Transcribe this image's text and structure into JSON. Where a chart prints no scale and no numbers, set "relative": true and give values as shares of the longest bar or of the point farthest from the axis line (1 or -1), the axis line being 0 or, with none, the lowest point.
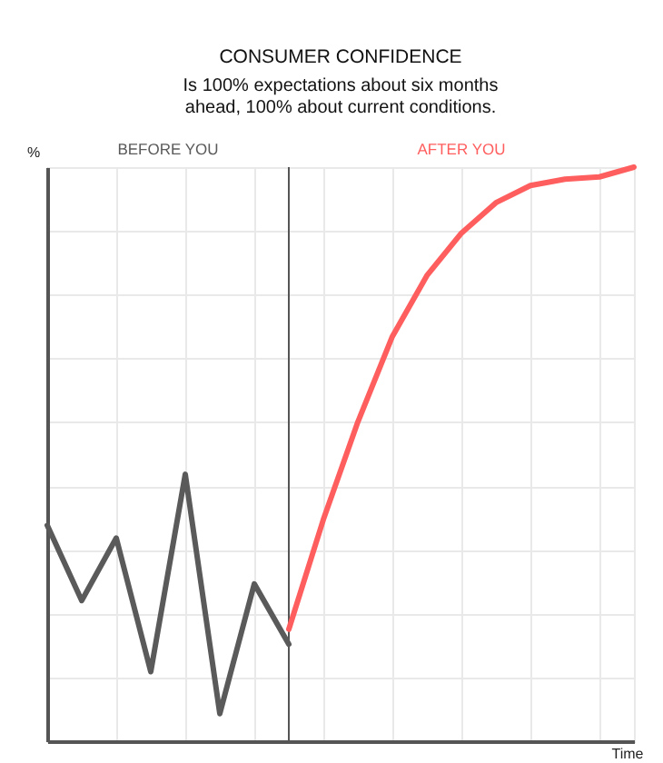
{
  "chart_data": {
    "type": "line",
    "title": "CONSUMER CONFIDENCE",
    "subtitle": "Is 100% expectations about six months\nahead, 100% about current conditions.",
    "xlabel": "Time",
    "ylabel": "%",
    "relative": true,
    "grid": true,
    "tick_labels": false,
    "line_style": "solid",
    "categories": [
      null,
      null,
      null,
      null,
      null,
      null,
      null,
      null,
      null,
      null,
      null,
      null,
      null,
      null,
      null,
      null,
      null,
      null
    ],
    "series": [
      {
        "name": "BEFORE YOU",
        "color": "#5a5a5a",
        "values": [
          0.376,
          0.245,
          0.354,
          0.121,
          0.465,
          0.048,
          0.274,
          0.169,
          null,
          null,
          null,
          null,
          null,
          null,
          null,
          null,
          null,
          null
        ]
      },
      {
        "name": "AFTER YOU",
        "color": "#ff5e5e",
        "values": [
          null,
          null,
          null,
          null,
          null,
          null,
          null,
          0.195,
          0.386,
          0.556,
          0.705,
          0.811,
          0.885,
          0.938,
          0.968,
          0.979,
          0.983,
          1.0
        ]
      }
    ]
  }
}
